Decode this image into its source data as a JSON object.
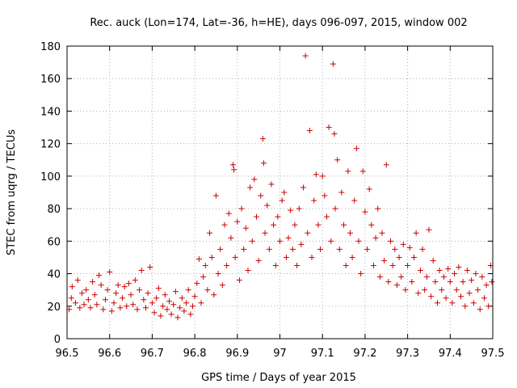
{
  "chart_data": {
    "type": "scatter",
    "title": "Rec. auck (Lon=174, Lat=-36, h=HE), days 096-097, 2015, window 002",
    "xlabel": "GPS time / Days of year 2015",
    "ylabel": "STEC from uqrg / TECUs",
    "xlim": [
      96.5,
      97.5
    ],
    "ylim": [
      0,
      180
    ],
    "xticks": [
      96.5,
      96.6,
      96.7,
      96.8,
      96.9,
      97,
      97.1,
      97.2,
      97.3,
      97.4,
      97.5
    ],
    "xtick_labels": [
      "96.5",
      "96.6",
      "96.7",
      "96.8",
      "96.9",
      "97",
      "97.1",
      "97.2",
      "97.3",
      "97.4",
      "97.5"
    ],
    "yticks": [
      0,
      20,
      40,
      60,
      80,
      100,
      120,
      140,
      160,
      180
    ],
    "ytick_labels": [
      "0",
      "20",
      "40",
      "60",
      "80",
      "100",
      "120",
      "140",
      "160",
      "180"
    ],
    "grid": true,
    "marker": "+",
    "marker_color": "#cc0000",
    "series": [
      {
        "name": "STEC",
        "points": [
          [
            96.505,
            18
          ],
          [
            96.51,
            25
          ],
          [
            96.512,
            32
          ],
          [
            96.52,
            22
          ],
          [
            96.525,
            36
          ],
          [
            96.53,
            19
          ],
          [
            96.535,
            28
          ],
          [
            96.54,
            21
          ],
          [
            96.545,
            30
          ],
          [
            96.55,
            24
          ],
          [
            96.555,
            19
          ],
          [
            96.56,
            35
          ],
          [
            96.565,
            27
          ],
          [
            96.57,
            21
          ],
          [
            96.575,
            39
          ],
          [
            96.58,
            33
          ],
          [
            96.585,
            18
          ],
          [
            96.59,
            24
          ],
          [
            96.595,
            30
          ],
          [
            96.6,
            41
          ],
          [
            96.605,
            17
          ],
          [
            96.61,
            22
          ],
          [
            96.615,
            28
          ],
          [
            96.62,
            33
          ],
          [
            96.625,
            19
          ],
          [
            96.63,
            25
          ],
          [
            96.635,
            32
          ],
          [
            96.64,
            20
          ],
          [
            96.645,
            34
          ],
          [
            96.65,
            27
          ],
          [
            96.655,
            21
          ],
          [
            96.66,
            36
          ],
          [
            96.665,
            18
          ],
          [
            96.67,
            30
          ],
          [
            96.675,
            42
          ],
          [
            96.68,
            24
          ],
          [
            96.685,
            19
          ],
          [
            96.69,
            28
          ],
          [
            96.695,
            44
          ],
          [
            96.7,
            22
          ],
          [
            96.705,
            16
          ],
          [
            96.71,
            25
          ],
          [
            96.715,
            31
          ],
          [
            96.72,
            14
          ],
          [
            96.725,
            20
          ],
          [
            96.73,
            27
          ],
          [
            96.735,
            18
          ],
          [
            96.74,
            23
          ],
          [
            96.745,
            15
          ],
          [
            96.75,
            21
          ],
          [
            96.755,
            29
          ],
          [
            96.76,
            13
          ],
          [
            96.765,
            19
          ],
          [
            96.77,
            25
          ],
          [
            96.775,
            17
          ],
          [
            96.78,
            22
          ],
          [
            96.785,
            30
          ],
          [
            96.79,
            15
          ],
          [
            96.795,
            20
          ],
          [
            96.8,
            26
          ],
          [
            96.805,
            34
          ],
          [
            96.81,
            49
          ],
          [
            96.815,
            22
          ],
          [
            96.82,
            38
          ],
          [
            96.825,
            45
          ],
          [
            96.83,
            30
          ],
          [
            96.835,
            65
          ],
          [
            96.84,
            50
          ],
          [
            96.845,
            27
          ],
          [
            96.85,
            88
          ],
          [
            96.855,
            40
          ],
          [
            96.86,
            55
          ],
          [
            96.865,
            33
          ],
          [
            96.87,
            70
          ],
          [
            96.875,
            45
          ],
          [
            96.88,
            77
          ],
          [
            96.885,
            62
          ],
          [
            96.89,
            107
          ],
          [
            96.892,
            104
          ],
          [
            96.895,
            50
          ],
          [
            96.9,
            72
          ],
          [
            96.905,
            36
          ],
          [
            96.91,
            80
          ],
          [
            96.915,
            55
          ],
          [
            96.92,
            68
          ],
          [
            96.925,
            42
          ],
          [
            96.93,
            93
          ],
          [
            96.935,
            60
          ],
          [
            96.94,
            98
          ],
          [
            96.945,
            75
          ],
          [
            96.95,
            48
          ],
          [
            96.955,
            88
          ],
          [
            96.96,
            123
          ],
          [
            96.962,
            108
          ],
          [
            96.965,
            65
          ],
          [
            96.97,
            82
          ],
          [
            96.975,
            55
          ],
          [
            96.98,
            95
          ],
          [
            96.985,
            70
          ],
          [
            96.99,
            45
          ],
          [
            96.995,
            75
          ],
          [
            97.0,
            60
          ],
          [
            97.005,
            85
          ],
          [
            97.01,
            90
          ],
          [
            97.015,
            50
          ],
          [
            97.02,
            62
          ],
          [
            97.025,
            79
          ],
          [
            97.03,
            55
          ],
          [
            97.035,
            70
          ],
          [
            97.04,
            45
          ],
          [
            97.045,
            80
          ],
          [
            97.05,
            58
          ],
          [
            97.055,
            93
          ],
          [
            97.06,
            174
          ],
          [
            97.065,
            65
          ],
          [
            97.07,
            128
          ],
          [
            97.075,
            50
          ],
          [
            97.08,
            85
          ],
          [
            97.085,
            101
          ],
          [
            97.09,
            70
          ],
          [
            97.095,
            55
          ],
          [
            97.1,
            100
          ],
          [
            97.105,
            88
          ],
          [
            97.11,
            75
          ],
          [
            97.115,
            130
          ],
          [
            97.12,
            60
          ],
          [
            97.125,
            169
          ],
          [
            97.128,
            126
          ],
          [
            97.13,
            80
          ],
          [
            97.135,
            110
          ],
          [
            97.14,
            55
          ],
          [
            97.145,
            90
          ],
          [
            97.15,
            70
          ],
          [
            97.155,
            45
          ],
          [
            97.16,
            103
          ],
          [
            97.165,
            65
          ],
          [
            97.17,
            50
          ],
          [
            97.175,
            85
          ],
          [
            97.18,
            117
          ],
          [
            97.185,
            60
          ],
          [
            97.19,
            40
          ],
          [
            97.195,
            103
          ],
          [
            97.2,
            78
          ],
          [
            97.205,
            55
          ],
          [
            97.21,
            92
          ],
          [
            97.215,
            70
          ],
          [
            97.22,
            45
          ],
          [
            97.225,
            62
          ],
          [
            97.23,
            80
          ],
          [
            97.235,
            38
          ],
          [
            97.24,
            65
          ],
          [
            97.245,
            48
          ],
          [
            97.25,
            107
          ],
          [
            97.255,
            35
          ],
          [
            97.26,
            60
          ],
          [
            97.265,
            45
          ],
          [
            97.27,
            55
          ],
          [
            97.275,
            33
          ],
          [
            97.28,
            50
          ],
          [
            97.285,
            38
          ],
          [
            97.29,
            58
          ],
          [
            97.295,
            30
          ],
          [
            97.3,
            45
          ],
          [
            97.305,
            56
          ],
          [
            97.31,
            35
          ],
          [
            97.315,
            50
          ],
          [
            97.32,
            65
          ],
          [
            97.325,
            28
          ],
          [
            97.33,
            42
          ],
          [
            97.335,
            55
          ],
          [
            97.34,
            30
          ],
          [
            97.345,
            38
          ],
          [
            97.35,
            67
          ],
          [
            97.355,
            26
          ],
          [
            97.36,
            48
          ],
          [
            97.365,
            35
          ],
          [
            97.37,
            22
          ],
          [
            97.375,
            42
          ],
          [
            97.38,
            30
          ],
          [
            97.385,
            38
          ],
          [
            97.39,
            25
          ],
          [
            97.395,
            43
          ],
          [
            97.4,
            35
          ],
          [
            97.405,
            22
          ],
          [
            97.41,
            40
          ],
          [
            97.415,
            30
          ],
          [
            97.42,
            44
          ],
          [
            97.425,
            26
          ],
          [
            97.43,
            35
          ],
          [
            97.435,
            20
          ],
          [
            97.44,
            42
          ],
          [
            97.445,
            28
          ],
          [
            97.45,
            36
          ],
          [
            97.455,
            22
          ],
          [
            97.46,
            40
          ],
          [
            97.465,
            30
          ],
          [
            97.47,
            18
          ],
          [
            97.475,
            38
          ],
          [
            97.48,
            25
          ],
          [
            97.485,
            33
          ],
          [
            97.49,
            20
          ],
          [
            97.495,
            45
          ],
          [
            97.498,
            35
          ]
        ]
      }
    ]
  }
}
